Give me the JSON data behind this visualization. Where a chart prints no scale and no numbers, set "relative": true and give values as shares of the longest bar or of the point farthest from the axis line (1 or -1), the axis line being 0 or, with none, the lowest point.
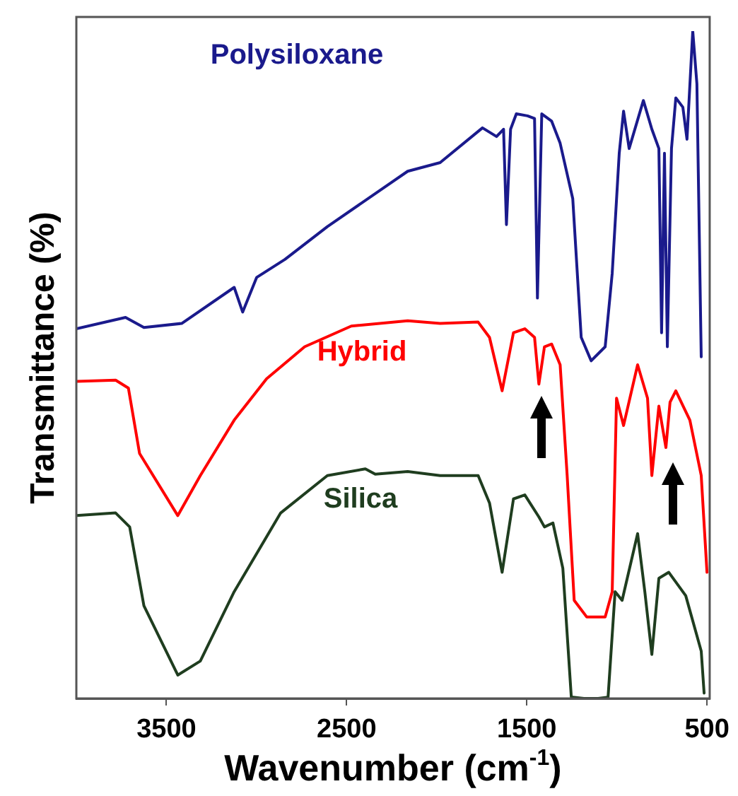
{
  "chart_data": {
    "type": "line",
    "relative": true,
    "xlabel": "Wavenumber (cm$^{-1}$)",
    "ylabel": "Transmittance (%)",
    "xlim": [
      4000,
      485
    ],
    "xticks": [
      3500,
      2500,
      1500,
      500
    ],
    "grid": false,
    "legend": false,
    "marker": "none",
    "line_style": "solid",
    "series": [
      {
        "name": "Polysiloxane",
        "color": "#1a1a8c",
        "x": [
          4000,
          3727,
          3625,
          3414,
          3124,
          3077,
          2999,
          2842,
          2607,
          2161,
          1981,
          1746,
          1668,
          1629,
          1613,
          1590,
          1558,
          1496,
          1457,
          1441,
          1417,
          1362,
          1315,
          1245,
          1198,
          1143,
          1065,
          1026,
          987,
          963,
          932,
          853,
          806,
          767,
          752,
          736,
          720,
          697,
          673,
          634,
          611,
          579,
          556,
          532
        ],
        "values": [
          0.554,
          0.571,
          0.556,
          0.562,
          0.616,
          0.579,
          0.631,
          0.658,
          0.707,
          0.79,
          0.803,
          0.855,
          0.842,
          0.853,
          0.71,
          0.853,
          0.876,
          0.873,
          0.869,
          0.6,
          0.876,
          0.865,
          0.832,
          0.749,
          0.541,
          0.506,
          0.527,
          0.637,
          0.817,
          0.88,
          0.824,
          0.896,
          0.853,
          0.824,
          0.548,
          0.817,
          0.527,
          0.824,
          0.9,
          0.886,
          0.838,
          1,
          0.921,
          0.512
        ]
      },
      {
        "name": "Hybrid",
        "color": "#ff0000",
        "x": [
          4000,
          3782,
          3711,
          3649,
          3437,
          3312,
          3124,
          2944,
          2733,
          2474,
          2161,
          1981,
          1770,
          1707,
          1637,
          1574,
          1511,
          1457,
          1433,
          1402,
          1362,
          1315,
          1276,
          1237,
          1167,
          1065,
          1026,
          1002,
          963,
          885,
          830,
          806,
          767,
          728,
          705,
          673,
          595,
          532,
          500
        ],
        "values": [
          0.475,
          0.477,
          0.465,
          0.367,
          0.274,
          0.334,
          0.417,
          0.479,
          0.527,
          0.558,
          0.566,
          0.562,
          0.564,
          0.541,
          0.461,
          0.548,
          0.554,
          0.541,
          0.471,
          0.527,
          0.531,
          0.5,
          0.334,
          0.147,
          0.122,
          0.122,
          0.16,
          0.45,
          0.409,
          0.5,
          0.45,
          0.334,
          0.438,
          0.376,
          0.444,
          0.461,
          0.417,
          0.334,
          0.189
        ]
      },
      {
        "name": "Silica",
        "color": "#1f3d1f",
        "x": [
          4000,
          3782,
          3704,
          3625,
          3437,
          3312,
          3124,
          2866,
          2607,
          2396,
          2341,
          2161,
          1981,
          1770,
          1707,
          1637,
          1574,
          1511,
          1433,
          1402,
          1355,
          1300,
          1253,
          1183,
          1104,
          1049,
          1010,
          971,
          885,
          845,
          806,
          767,
          712,
          618,
          532,
          516
        ],
        "values": [
          0.274,
          0.278,
          0.257,
          0.139,
          0.035,
          0.056,
          0.16,
          0.278,
          0.334,
          0.344,
          0.336,
          0.34,
          0.334,
          0.334,
          0.293,
          0.189,
          0.299,
          0.305,
          0.272,
          0.257,
          0.263,
          0.195,
          0.002,
          0,
          0,
          0.002,
          0.16,
          0.147,
          0.247,
          0.16,
          0.066,
          0.18,
          0.189,
          0.154,
          0.071,
          0.008
        ]
      }
    ]
  }
}
